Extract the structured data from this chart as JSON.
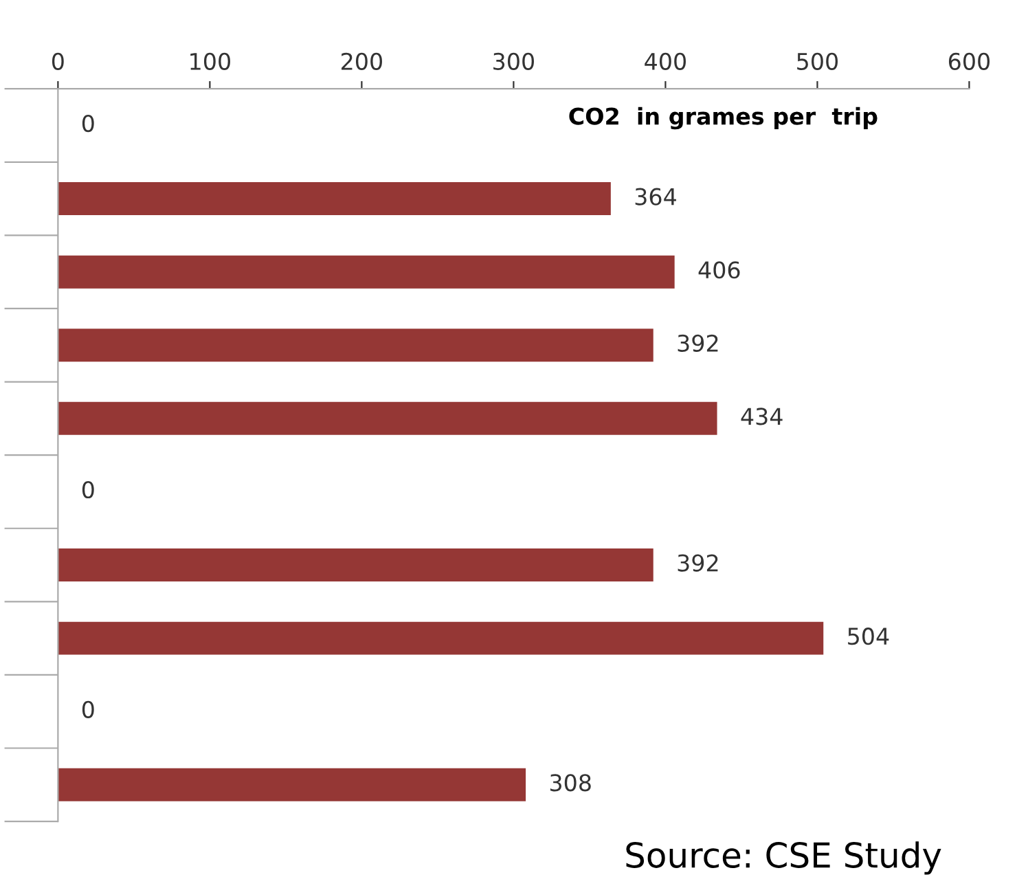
{
  "chart_data": {
    "type": "bar",
    "orientation": "horizontal",
    "title": "CO2  in grames per  trip",
    "categories": [
      null,
      null,
      null,
      null,
      null,
      null,
      null,
      null,
      null,
      null
    ],
    "values": [
      0,
      364,
      406,
      392,
      434,
      0,
      392,
      504,
      0,
      308
    ],
    "color": "#953735",
    "xlim": [
      0,
      600
    ],
    "xticks": [
      0,
      100,
      200,
      300,
      400,
      500,
      600
    ],
    "data_labels": true,
    "grid": false,
    "legend": false,
    "tick_labels": "x",
    "annotations": [
      "Source: CSE Study"
    ]
  }
}
